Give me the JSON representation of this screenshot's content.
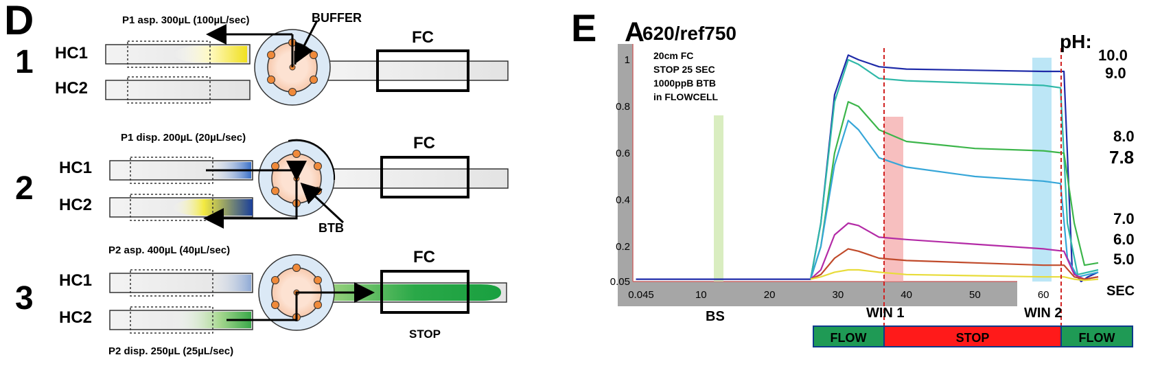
{
  "panel_d": {
    "letter": "D",
    "steps": [
      {
        "number": "1",
        "caption": "P1 asp. 300µL (100µL/sec)",
        "note": "BUFFER"
      },
      {
        "number": "2",
        "caption_top": "P1 disp. 200µL (20µL/sec)",
        "caption_bottom": "P2 asp. 400µL (40µL/sec)",
        "note": "BTB"
      },
      {
        "number": "3",
        "caption": "P2 disp. 250µL (25µL/sec)",
        "note": "STOP"
      }
    ],
    "hc1_label": "HC1",
    "hc2_label": "HC2",
    "fc_label": "FC"
  },
  "panel_e": {
    "letter": "E",
    "title_main": "A",
    "title_sub": "620/ref750",
    "notes": [
      "20cm FC",
      "STOP 25 SEC",
      "1000ppB BTB",
      "in FLOWCELL"
    ],
    "ph_header": "pH:",
    "ph_labels": [
      "10.0",
      "9.0",
      "8.0",
      "7.8",
      "7.0",
      "6.0",
      "5.0"
    ],
    "x_unit": "SEC",
    "bs_label": "BS",
    "win1_label": "WIN 1",
    "win2_label": "WIN 2",
    "phases": [
      "FLOW",
      "STOP",
      "FLOW"
    ],
    "colors": {
      "flow": "#1f9a55",
      "stop": "#ff1a1a",
      "win": "#f0b0b0",
      "win2": "#9fdcf2",
      "bs": "#cfe8b0"
    }
  },
  "chart_data": {
    "type": "line",
    "xlabel": "SEC",
    "ylabel": "A620/ref750",
    "xlim": [
      0.045,
      68
    ],
    "ylim": [
      0.05,
      1.05
    ],
    "x_ticks": [
      "0.045",
      "10",
      "20",
      "30",
      "40",
      "50",
      "60"
    ],
    "y_ticks": [
      "0.05",
      "0.2",
      "0.4",
      "0.6",
      "0.8",
      "1"
    ],
    "series": [
      {
        "name": "10.0",
        "color": "#1e2aa8",
        "x": [
          0.5,
          26,
          27.5,
          29.5,
          31.5,
          33,
          36,
          40,
          50,
          60,
          63,
          64.2,
          65.5,
          66.5,
          68
        ],
        "y": [
          0.06,
          0.06,
          0.3,
          0.85,
          1.02,
          1.0,
          0.97,
          0.96,
          0.955,
          0.95,
          0.95,
          0.1,
          0.05,
          0.07,
          0.09
        ]
      },
      {
        "name": "9.0",
        "color": "#2fb8a8",
        "x": [
          26,
          27.5,
          29.5,
          31.5,
          33,
          36,
          40,
          50,
          60,
          62.5,
          63.5,
          65,
          68
        ],
        "y": [
          0.06,
          0.3,
          0.82,
          1.0,
          0.98,
          0.92,
          0.91,
          0.9,
          0.89,
          0.88,
          0.3,
          0.08,
          0.1
        ]
      },
      {
        "name": "8.0",
        "color": "#3cb54a",
        "x": [
          26,
          27.5,
          29.5,
          31.5,
          33,
          36,
          40,
          50,
          60,
          63,
          64.5,
          66,
          68
        ],
        "y": [
          0.06,
          0.2,
          0.6,
          0.82,
          0.8,
          0.7,
          0.65,
          0.62,
          0.61,
          0.6,
          0.3,
          0.12,
          0.13
        ]
      },
      {
        "name": "7.8",
        "color": "#36a6d8",
        "x": [
          26,
          27.5,
          29.5,
          31.5,
          33,
          36,
          40,
          50,
          60,
          62.5,
          63.5,
          65,
          68
        ],
        "y": [
          0.06,
          0.2,
          0.55,
          0.74,
          0.7,
          0.58,
          0.54,
          0.5,
          0.48,
          0.47,
          0.15,
          0.07,
          0.09
        ]
      },
      {
        "name": "7.0",
        "color": "#b32aa6",
        "x": [
          26,
          27.5,
          29.5,
          31.5,
          33,
          36,
          40,
          50,
          60,
          63,
          64.5,
          66,
          68
        ],
        "y": [
          0.06,
          0.1,
          0.25,
          0.3,
          0.29,
          0.24,
          0.23,
          0.21,
          0.19,
          0.18,
          0.08,
          0.06,
          0.07
        ]
      },
      {
        "name": "6.0",
        "color": "#c04a2a",
        "x": [
          26,
          27.5,
          29.5,
          31.5,
          33,
          36,
          40,
          50,
          60,
          63,
          64.5,
          66,
          68
        ],
        "y": [
          0.06,
          0.08,
          0.15,
          0.19,
          0.18,
          0.15,
          0.14,
          0.13,
          0.12,
          0.12,
          0.07,
          0.06,
          0.07
        ]
      },
      {
        "name": "5.0",
        "color": "#e8dc3a",
        "x": [
          26,
          27.5,
          29.5,
          31.5,
          33,
          36,
          40,
          50,
          60,
          63,
          64.5,
          66,
          68
        ],
        "y": [
          0.06,
          0.07,
          0.09,
          0.1,
          0.1,
          0.09,
          0.08,
          0.075,
          0.07,
          0.07,
          0.06,
          0.055,
          0.06
        ]
      }
    ]
  }
}
